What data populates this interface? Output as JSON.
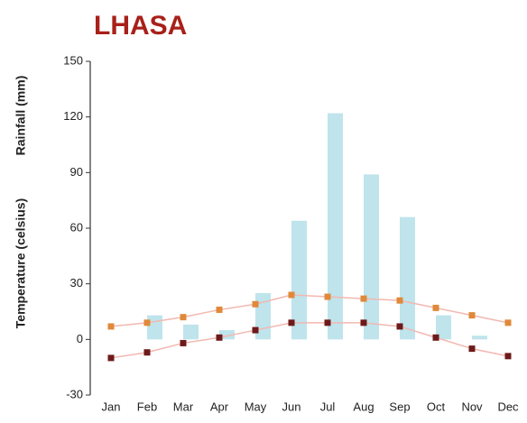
{
  "chart_data": {
    "type": "bar",
    "title": "LHASA",
    "axis_labels": [
      "Rainfall (mm)",
      "Temperature (celsius)"
    ],
    "categories": [
      "Jan",
      "Feb",
      "Mar",
      "Apr",
      "May",
      "Jun",
      "Jul",
      "Aug",
      "Sep",
      "Oct",
      "Nov",
      "Dec"
    ],
    "series": [
      {
        "type": "bar",
        "color": "#bfe4ec",
        "values": [
          0,
          13,
          8,
          5,
          25,
          64,
          122,
          89,
          66,
          13,
          2,
          0
        ]
      },
      {
        "type": "line",
        "color": "#e0893a",
        "values": [
          7,
          9,
          12,
          16,
          19,
          24,
          23,
          22,
          21,
          17,
          13,
          9
        ]
      },
      {
        "type": "line",
        "color": "#6e1a1a",
        "values": [
          -10,
          -7,
          -2,
          1,
          5,
          9,
          9,
          9,
          7,
          1,
          -5,
          -9
        ]
      }
    ],
    "ylim": [
      -30,
      150
    ],
    "yticks": [
      -30,
      0,
      30,
      60,
      90,
      120,
      150
    ]
  }
}
